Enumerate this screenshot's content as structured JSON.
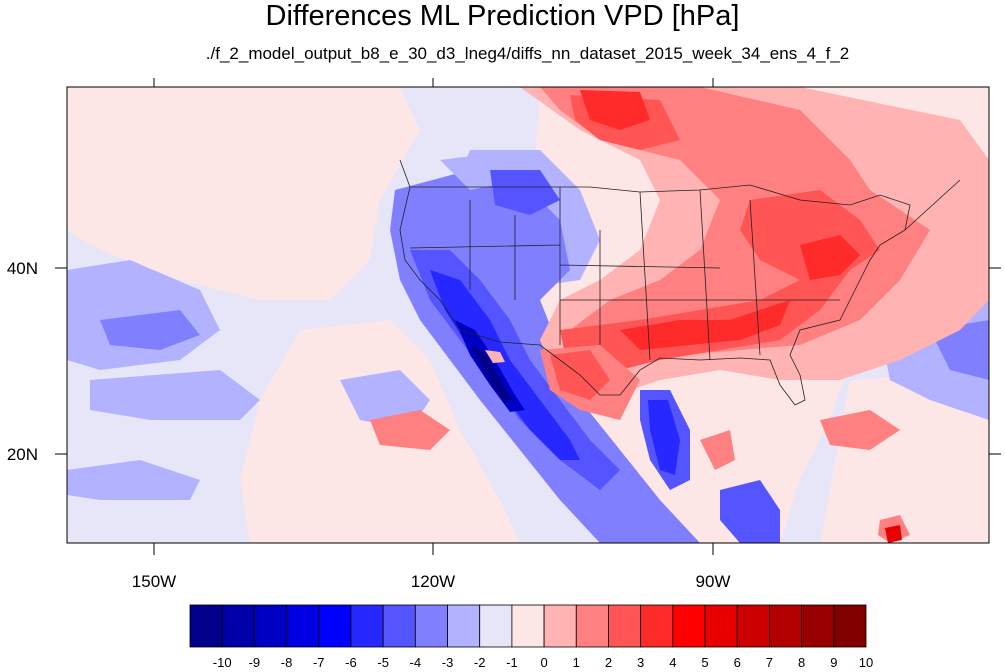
{
  "title": "Differences ML Prediction VPD [hPa]",
  "subtitle": "./f_2_model_output_b8_e_30_d3_lneg4/diffs_nn_dataset_2015_week_34_ens_4_f_2",
  "axes": {
    "x_ticks": [
      "150W",
      "120W",
      "90W"
    ],
    "y_ticks": [
      "40N",
      "20N"
    ]
  },
  "colorbar": {
    "labels": [
      "-10",
      "-9",
      "-8",
      "-7",
      "-6",
      "-5",
      "-4",
      "-3",
      "-2",
      "-1",
      "0",
      "1",
      "2",
      "3",
      "4",
      "5",
      "6",
      "7",
      "8",
      "9",
      "10"
    ],
    "colors": [
      "#00008b",
      "#0000a8",
      "#0000c5",
      "#0000e2",
      "#0000ff",
      "#2727ff",
      "#5555ff",
      "#8080ff",
      "#b2b2ff",
      "#e6e6f8",
      "#fde6e6",
      "#ffb3b3",
      "#ff8080",
      "#ff5555",
      "#ff2a2a",
      "#ff0000",
      "#e60000",
      "#cc0000",
      "#b30000",
      "#990000",
      "#800000"
    ]
  }
}
